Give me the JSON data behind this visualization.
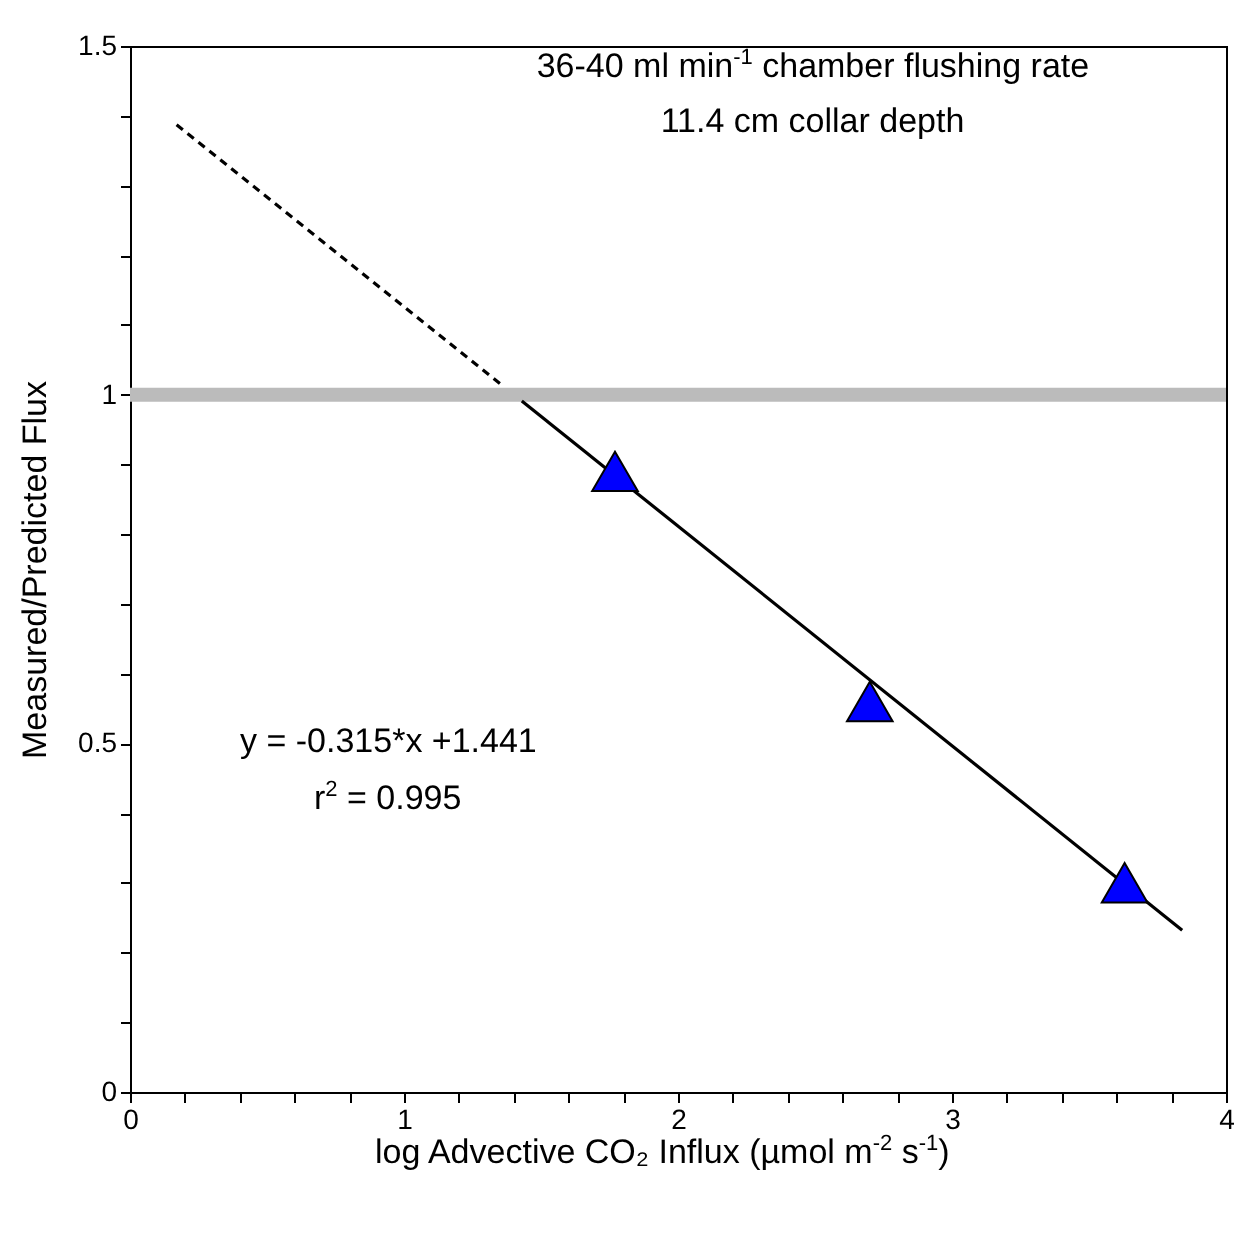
{
  "chart_data": {
    "type": "scatter",
    "xlabel": "log Advective CO₂ Influx (µmol m$^{-2}$ s$^{-1}$)",
    "ylabel": "Measured/Predicted Flux",
    "annotations": [
      "36-40 ml min$^{-1}$ chamber flushing rate",
      "11.4 cm collar depth",
      "y = -0.315*x +1.441",
      "r$^{2}$ = 0.995"
    ],
    "series": [
      {
        "color": "#0000ff",
        "marker": "triangle",
        "x": [
          1.77,
          2.7,
          3.63
        ],
        "values": [
          0.89,
          0.56,
          0.3
        ]
      },
      {
        "type": "line",
        "color": "#000000",
        "line_style": "solid",
        "marker": "none",
        "x": [
          1.43,
          3.84
        ],
        "values": [
          0.991,
          0.232
        ]
      },
      {
        "type": "line",
        "color": "#000000",
        "line_style": "dashed",
        "marker": "none",
        "x": [
          0.17,
          1.36
        ],
        "values": [
          1.387,
          1.013
        ]
      }
    ],
    "ref_lines": [
      {
        "axis": "y",
        "value": 1,
        "color": "#bbbbbb"
      }
    ],
    "xlim": [
      0,
      4
    ],
    "xticks": [
      0,
      {
        "value": 0.2,
        "label": null
      },
      {
        "value": 0.4,
        "label": null
      },
      {
        "value": 0.6,
        "label": null
      },
      {
        "value": 0.8,
        "label": null
      },
      1,
      {
        "value": 1.2,
        "label": null
      },
      {
        "value": 1.4,
        "label": null
      },
      {
        "value": 1.6,
        "label": null
      },
      {
        "value": 1.8,
        "label": null
      },
      2,
      {
        "value": 2.2,
        "label": null
      },
      {
        "value": 2.4,
        "label": null
      },
      {
        "value": 2.6,
        "label": null
      },
      {
        "value": 2.8,
        "label": null
      },
      3,
      {
        "value": 3.2,
        "label": null
      },
      {
        "value": 3.4,
        "label": null
      },
      {
        "value": 3.6,
        "label": null
      },
      {
        "value": 3.8,
        "label": null
      },
      4
    ],
    "ylim": [
      0,
      1.5
    ],
    "yticks": [
      0,
      {
        "value": 0.1,
        "label": null
      },
      {
        "value": 0.2,
        "label": null
      },
      {
        "value": 0.3,
        "label": null
      },
      {
        "value": 0.4,
        "label": null
      },
      0.5,
      {
        "value": 0.6,
        "label": null
      },
      {
        "value": 0.7,
        "label": null
      },
      {
        "value": 0.8,
        "label": null
      },
      {
        "value": 0.9,
        "label": null
      },
      1,
      {
        "value": 1.1,
        "label": null
      },
      {
        "value": 1.2,
        "label": null
      },
      {
        "value": 1.3,
        "label": null
      },
      {
        "value": 1.4,
        "label": null
      },
      1.5
    ],
    "grid": false
  }
}
